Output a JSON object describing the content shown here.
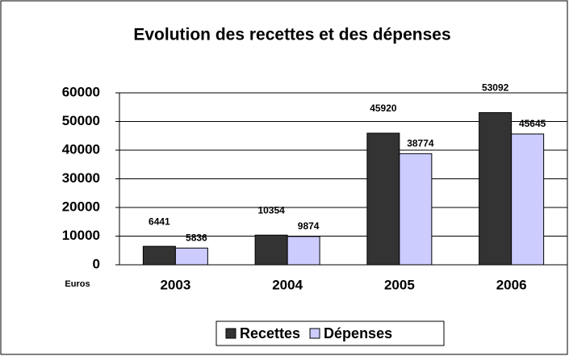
{
  "chart_data": {
    "type": "bar",
    "title": "Evolution des recettes et des dépenses",
    "y_label": "Euros",
    "categories": [
      "2003",
      "2004",
      "2005",
      "2006"
    ],
    "series": [
      {
        "name": "Recettes",
        "color": "#333333",
        "values": [
          6441,
          10354,
          45920,
          53092
        ]
      },
      {
        "name": "Dépenses",
        "color": "#ccccff",
        "values": [
          5836,
          9874,
          38774,
          45645
        ]
      }
    ],
    "ylim": [
      0,
      60000
    ],
    "yticks": [
      0,
      10000,
      20000,
      30000,
      40000,
      50000,
      60000
    ],
    "grid": true,
    "legend": "bottom"
  }
}
